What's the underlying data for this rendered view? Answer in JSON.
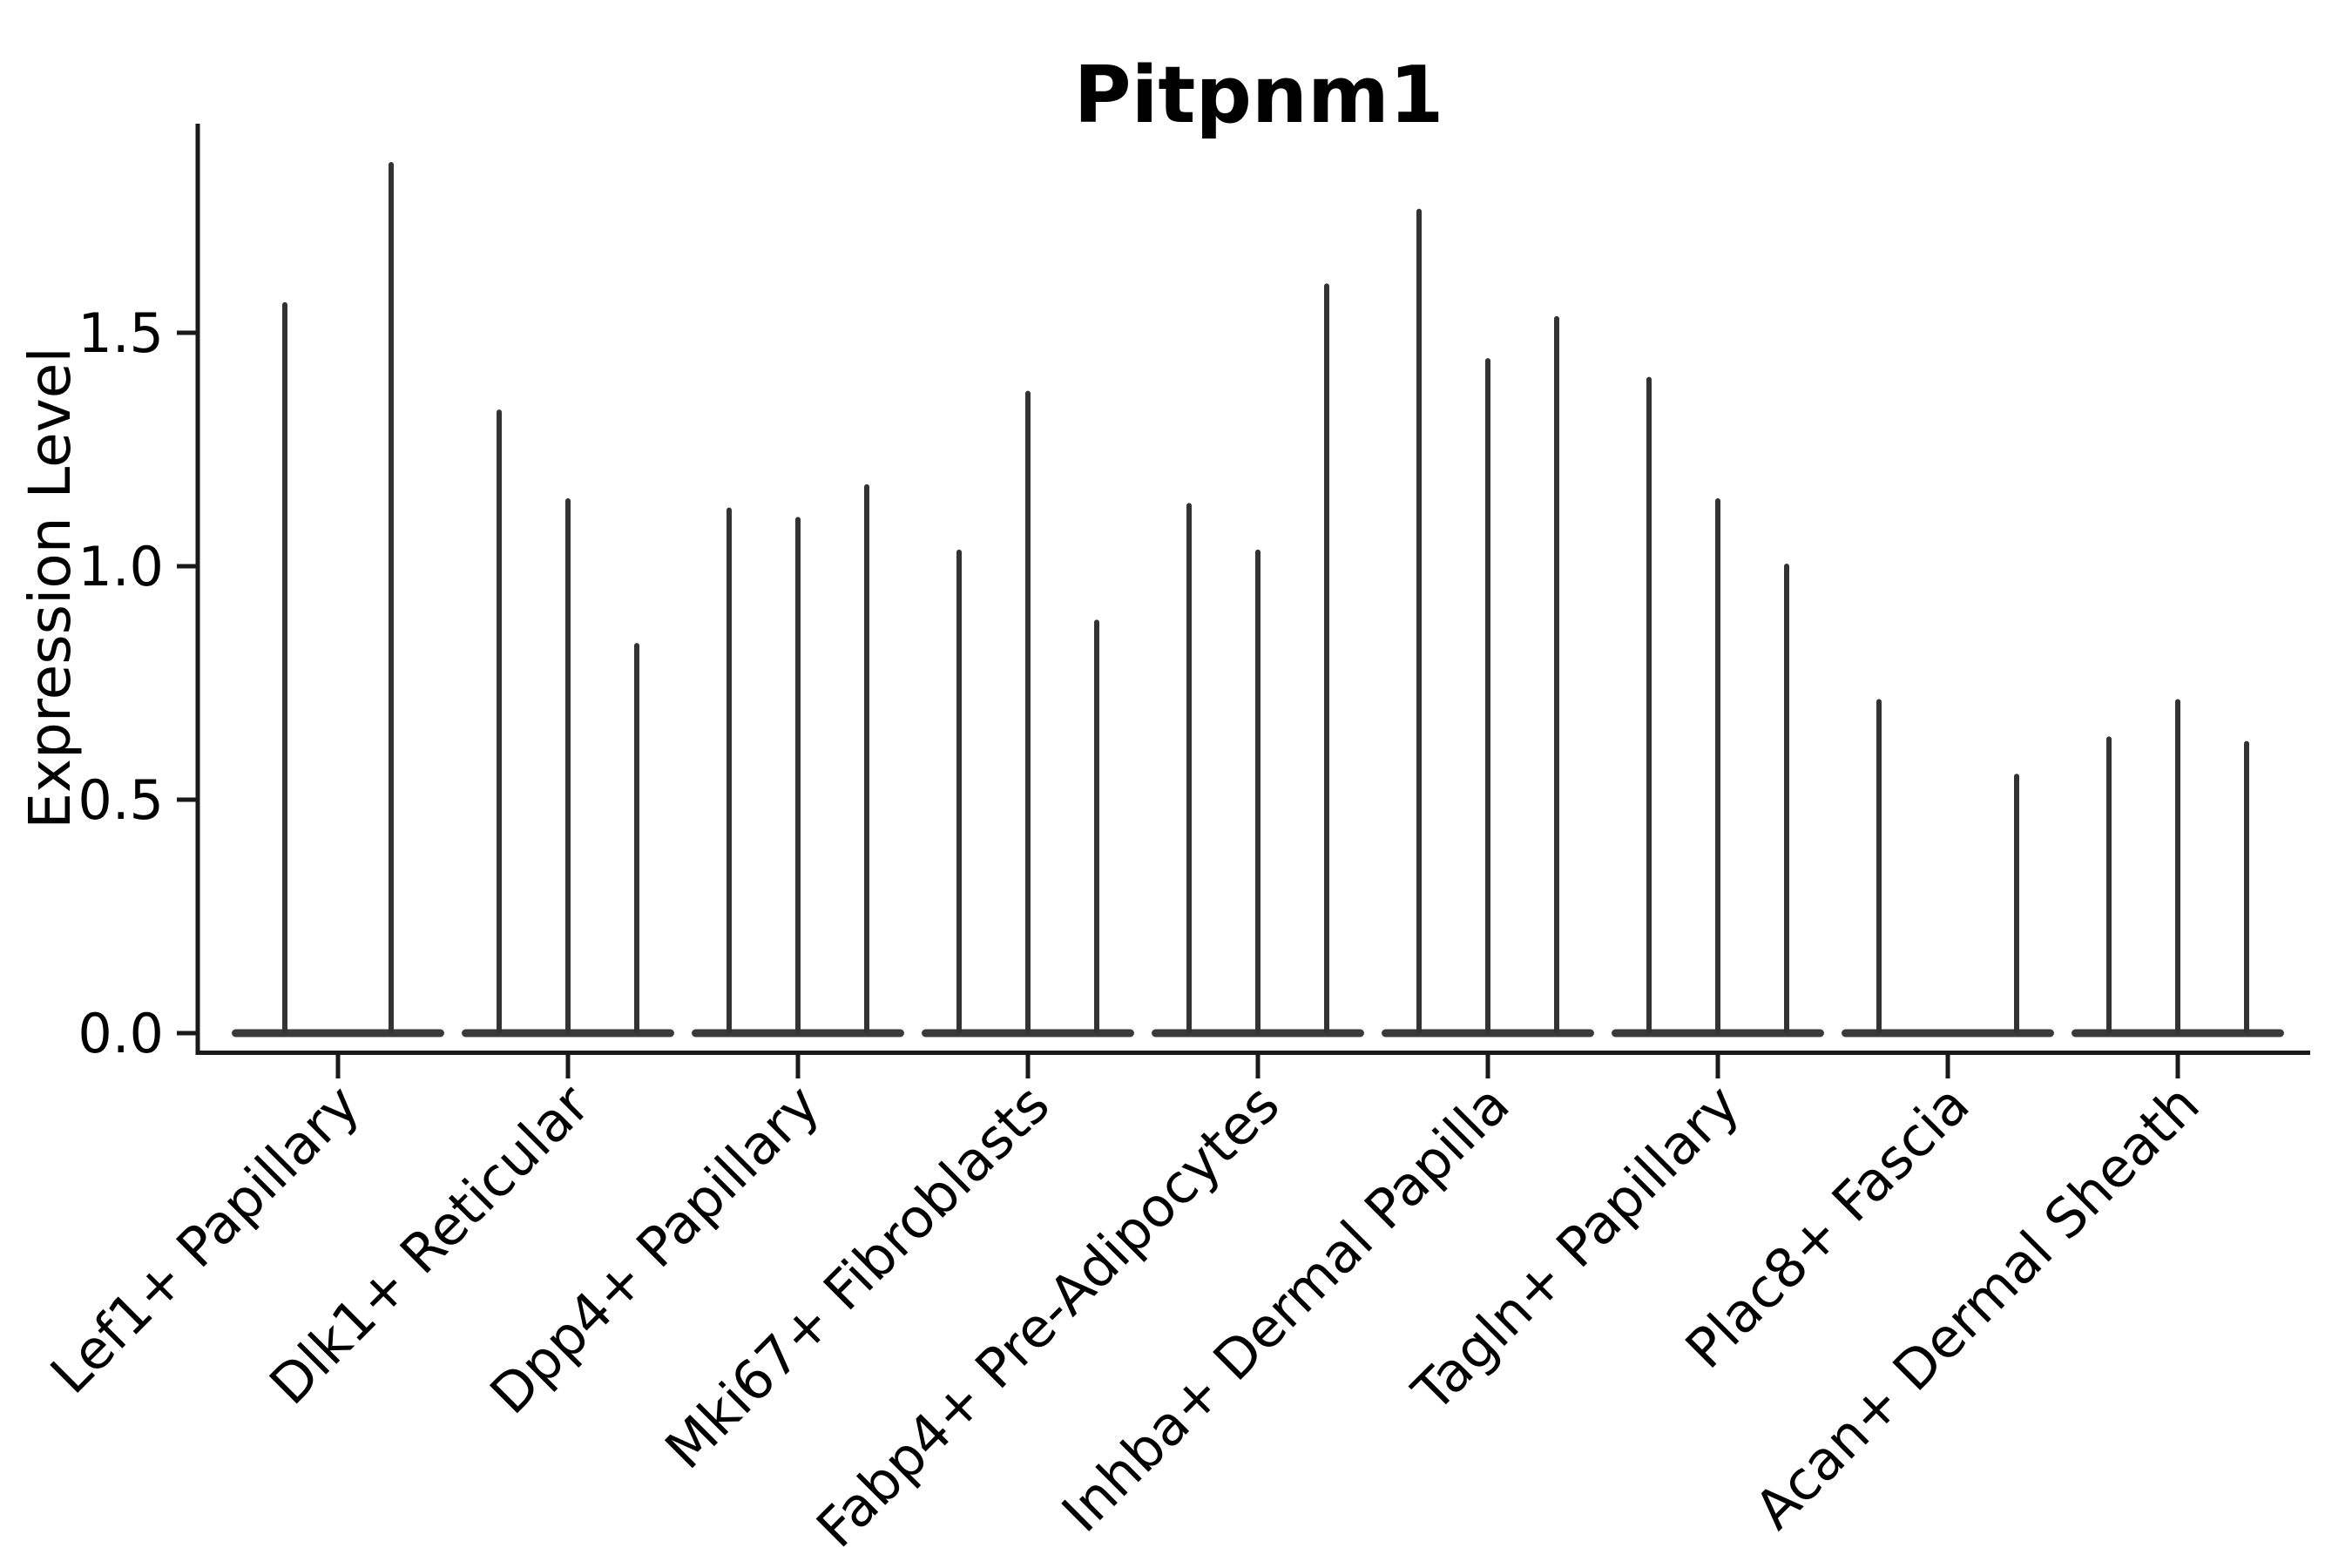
{
  "figure": {
    "title": "Pitpnm1"
  },
  "chart_data": {
    "type": "violin",
    "title": "Pitpnm1",
    "xlabel": "",
    "ylabel": "Expression Level",
    "ylim": [
      0,
      1.95
    ],
    "grid": false,
    "legend": "none",
    "yticks": [
      {
        "value": 0.0,
        "label": "0.0"
      },
      {
        "value": 0.5,
        "label": "0.5"
      },
      {
        "value": 1.0,
        "label": "1.0"
      },
      {
        "value": 1.5,
        "label": "1.5"
      }
    ],
    "categories": [
      "Lef1+ Papillary",
      "Dlk1+ Reticular",
      "Dpp4+ Papillary",
      "Mki67+ Fibroblasts",
      "Fabp4+ Pre-Adipocytes",
      "Inhba+ Dermal Papilla",
      "Tagln+ Papillary",
      "Plac8+ Fascia",
      "Acan+ Dermal Sheath"
    ],
    "series": [
      {
        "category": "Lef1+ Papillary",
        "violin_peaks": [
          1.56,
          1.86
        ]
      },
      {
        "category": "Dlk1+ Reticular",
        "violin_peaks": [
          1.33,
          1.14,
          0.83
        ]
      },
      {
        "category": "Dpp4+ Papillary",
        "violin_peaks": [
          1.12,
          1.1,
          1.17
        ]
      },
      {
        "category": "Mki67+ Fibroblasts",
        "violin_peaks": [
          1.03,
          1.37,
          0.88
        ]
      },
      {
        "category": "Fabp4+ Pre-Adipocytes",
        "violin_peaks": [
          1.13,
          1.03,
          1.6
        ]
      },
      {
        "category": "Inhba+ Dermal Papilla",
        "violin_peaks": [
          1.76,
          1.44,
          1.53
        ]
      },
      {
        "category": "Tagln+ Papillary",
        "violin_peaks": [
          1.4,
          1.14,
          1.0
        ]
      },
      {
        "category": "Plac8+ Fascia",
        "violin_peaks": [
          0.71,
          0.0,
          0.55
        ]
      },
      {
        "category": "Acan+ Dermal Sheath",
        "violin_peaks": [
          0.63,
          0.71,
          0.62
        ]
      }
    ],
    "baseline_value": 0.0,
    "violin_color": "#333333",
    "violin_base_color": "#3a3a3a",
    "axis_color": "#1a1a1a",
    "text_color": "#000000"
  }
}
